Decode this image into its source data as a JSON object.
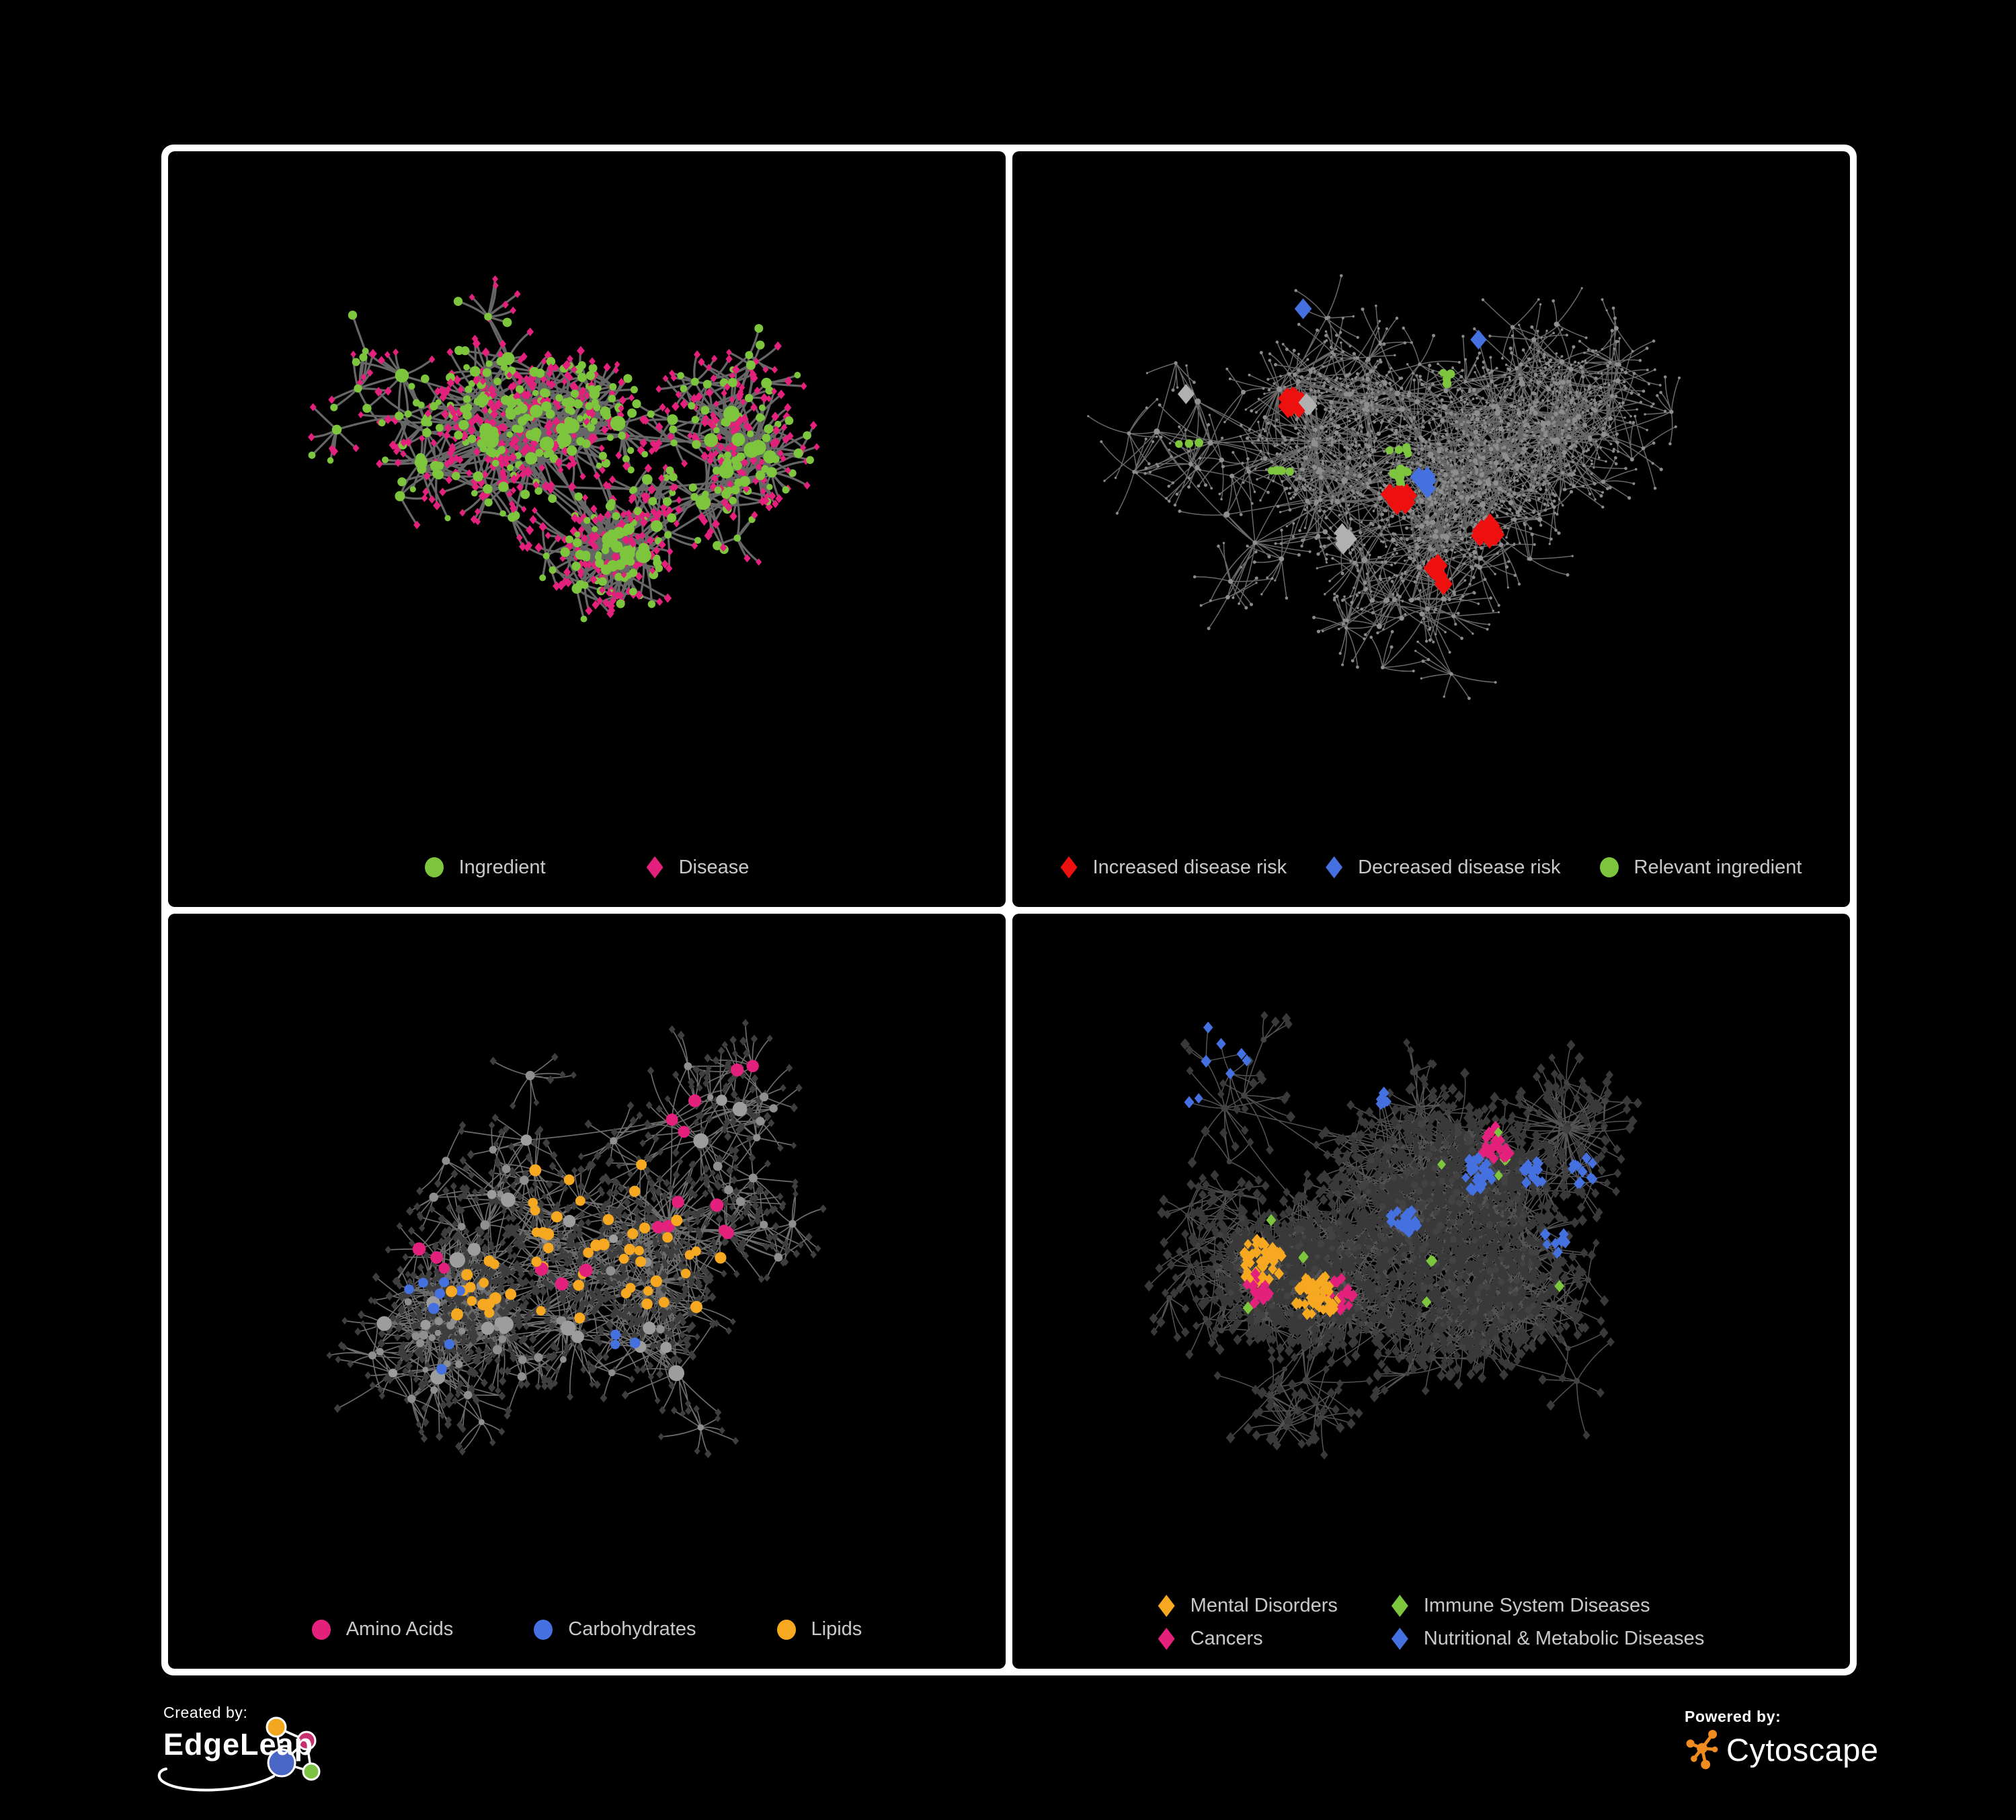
{
  "page": {
    "background": "#000000",
    "legend_text_color": "#C9C9C9"
  },
  "colors": {
    "green": "#7CC53D",
    "pink": "#E3217C",
    "red": "#EE0F0F",
    "blue": "#4470E0",
    "gold": "#F5A820",
    "silver": "#B0B0B0"
  },
  "footer": {
    "created_by": {
      "label": "Created by:",
      "brand": "EdgeLeap"
    },
    "powered_by": {
      "label": "Powered by:",
      "brand": "Cytoscape"
    }
  },
  "panels": [
    {
      "id": "ingredient-disease",
      "legend": {
        "items": [
          {
            "label": "Ingredient",
            "shape": "circle",
            "color": "#7CC53D"
          },
          {
            "label": "Disease",
            "shape": "diamond",
            "color": "#E3217C"
          }
        ]
      },
      "network": {
        "seed": 11,
        "clusters": 15,
        "spread": [
          0.33,
          0.32
        ],
        "netH": 1005,
        "hubSpread": 120,
        "hubs": [
          2,
          4
        ],
        "hubR": [
          6,
          12
        ],
        "leaves": [
          4,
          12
        ],
        "leafDist": [
          35,
          95
        ],
        "subProb": 0.3,
        "subLeaves": [
          3,
          8
        ],
        "subDist": [
          28,
          60
        ],
        "midR": [
          5,
          8
        ],
        "bigBursts": 2,
        "bigLeaves": [
          18,
          30
        ],
        "extraLinks": 10,
        "edge": {
          "color": "#6C6C6C",
          "width": 3.2,
          "opacity": 0.95
        },
        "hubStyle": {
          "shape": "circle",
          "color": "#7CC53D"
        },
        "midStyle": {
          "shape": "circle",
          "color": "#7CC53D"
        },
        "leafVariants": [
          {
            "w": 0.76,
            "shape": "diamond",
            "color": "#E3217C",
            "r": [
              4.5,
              6.5
            ]
          },
          {
            "w": 0.24,
            "shape": "circle",
            "color": "#7CC53D",
            "r": [
              4.5,
              7
            ]
          }
        ],
        "highlights": []
      }
    },
    {
      "id": "disease-risk",
      "legend": {
        "items": [
          {
            "label": "Increased disease risk",
            "shape": "diamond",
            "color": "#EE0F0F"
          },
          {
            "label": "Decreased disease risk",
            "shape": "diamond",
            "color": "#4470E0"
          },
          {
            "label": "Relevant ingredient",
            "shape": "circle",
            "color": "#7CC53D"
          }
        ]
      },
      "network": {
        "seed": 22,
        "clusters": 18,
        "spread": [
          0.34,
          0.32
        ],
        "netH": 1005,
        "hubSpread": 140,
        "hubs": [
          2,
          4
        ],
        "hubR": [
          3,
          5
        ],
        "leaves": [
          4,
          13
        ],
        "leafDist": [
          40,
          110
        ],
        "subProb": 0.42,
        "subLeaves": [
          3,
          9
        ],
        "subDist": [
          30,
          70
        ],
        "midR": [
          2.5,
          4
        ],
        "bigBursts": 4,
        "bigLeaves": [
          20,
          36
        ],
        "extraLinks": 14,
        "edge": {
          "color": "#828282",
          "width": 1.5,
          "opacity": 0.8
        },
        "hubStyle": {
          "shape": "circle",
          "color": "#8F8F8F"
        },
        "midStyle": {
          "shape": "circle",
          "color": "#8F8F8F"
        },
        "leafVariants": [
          {
            "w": 1,
            "shape": "circle",
            "color": "#8A8A8A",
            "r": [
              1.6,
              2.6
            ]
          }
        ],
        "highlights": [
          {
            "shape": "diamond",
            "color": "#EE0F0F",
            "s": [
              13,
              16
            ],
            "count": 27,
            "targets": [
              "hub",
              "mid",
              "leaf"
            ],
            "region": [
              0.18,
              0.72,
              0.15,
              0.75
            ],
            "foci": 4
          },
          {
            "shape": "diamond",
            "color": "#B0B0B0",
            "s": [
              12,
              14
            ],
            "count": 9,
            "targets": [
              "hub",
              "mid",
              "leaf"
            ],
            "region": [
              0.2,
              0.62,
              0.2,
              0.7
            ],
            "foci": 3
          },
          {
            "shape": "diamond",
            "color": "#4470E0",
            "s": [
              12,
              14
            ],
            "count": 8,
            "targets": [
              "hub",
              "mid",
              "leaf"
            ],
            "region": [
              0.15,
              0.98,
              0.08,
              0.55
            ],
            "foci": 3
          },
          {
            "shape": "circle",
            "color": "#7CC53D",
            "s": [
              5.5,
              7
            ],
            "count": 26,
            "targets": [
              "hub",
              "mid",
              "leaf"
            ],
            "region": [
              0.12,
              0.75,
              0.12,
              0.8
            ],
            "foci": 5
          }
        ]
      }
    },
    {
      "id": "nutrient-classes",
      "legend": {
        "items": [
          {
            "label": "Amino Acids",
            "shape": "circle",
            "color": "#E3217C"
          },
          {
            "label": "Carbohydrates",
            "shape": "circle",
            "color": "#4470E0"
          },
          {
            "label": "Lipids",
            "shape": "circle",
            "color": "#F5A820"
          }
        ]
      },
      "network": {
        "seed": 33,
        "clusters": 16,
        "spread": [
          0.32,
          0.31
        ],
        "netH": 1005,
        "hubSpread": 130,
        "hubs": [
          2,
          4
        ],
        "hubR": [
          6,
          12
        ],
        "leaves": [
          4,
          13
        ],
        "leafDist": [
          35,
          100
        ],
        "subProb": 0.34,
        "subLeaves": [
          4,
          10
        ],
        "subDist": [
          28,
          65
        ],
        "midR": [
          4.5,
          7
        ],
        "bigBursts": 3,
        "bigLeaves": [
          26,
          48
        ],
        "extraLinks": 12,
        "edge": {
          "color": "#9A9A9A",
          "width": 1.7,
          "opacity": 0.7
        },
        "hubStyle": {
          "shape": "circle",
          "color": "#9D9D9D"
        },
        "midStyle": {
          "shape": "circle",
          "color": "#8F8F8F"
        },
        "leafVariants": [
          {
            "w": 1,
            "shape": "diamond",
            "color": "#3E3E3E",
            "r": [
              4.5,
              6
            ]
          }
        ],
        "highlights": [
          {
            "shape": "circle",
            "color": "#F5A820",
            "s": [
              7,
              9
            ],
            "count": 55,
            "targets": [
              "hub",
              "mid"
            ],
            "region": [
              0.15,
              0.75,
              0.05,
              0.6
            ],
            "foci": 3
          },
          {
            "shape": "circle",
            "color": "#E3217C",
            "s": [
              8,
              10
            ],
            "count": 17,
            "targets": [
              "hub",
              "mid"
            ],
            "region": [
              0.02,
              0.98,
              0.05,
              0.95
            ],
            "foci": 6
          },
          {
            "shape": "circle",
            "color": "#4470E0",
            "s": [
              7,
              8.5
            ],
            "count": 11,
            "targets": [
              "hub",
              "mid"
            ],
            "region": [
              0.1,
              0.8,
              0.05,
              0.75
            ],
            "foci": 4
          }
        ]
      }
    },
    {
      "id": "disease-classes",
      "legend": {
        "columns": 2,
        "items": [
          {
            "label": "Mental Disorders",
            "shape": "diamond",
            "color": "#F5A820"
          },
          {
            "label": "Immune System Diseases",
            "shape": "diamond",
            "color": "#7CC53D"
          },
          {
            "label": "Cancers",
            "shape": "diamond",
            "color": "#E3217C"
          },
          {
            "label": "Nutritional & Metabolic Diseases",
            "shape": "diamond",
            "color": "#4470E0"
          }
        ]
      },
      "network": {
        "seed": 44,
        "clusters": 22,
        "spread": [
          0.34,
          0.31
        ],
        "netH": 970,
        "hubSpread": 130,
        "hubs": [
          2,
          4
        ],
        "hubR": [
          4,
          6
        ],
        "leaves": [
          5,
          14
        ],
        "leafDist": [
          35,
          95
        ],
        "subProb": 0.36,
        "subLeaves": [
          4,
          10
        ],
        "subDist": [
          26,
          60
        ],
        "midR": [
          3.5,
          5.5
        ],
        "bigBursts": 5,
        "bigLeaves": [
          24,
          44
        ],
        "extraLinks": 16,
        "edge": {
          "color": "#808080",
          "width": 1.5,
          "opacity": 0.65
        },
        "hubStyle": {
          "shape": "circle",
          "color": "#424242"
        },
        "midStyle": {
          "shape": "circle",
          "color": "#424242"
        },
        "leafVariants": [
          {
            "w": 1,
            "shape": "diamond",
            "color": "#393939",
            "r": [
              5.5,
              7.5
            ]
          }
        ],
        "highlights": [
          {
            "shape": "diamond",
            "color": "#F5A820",
            "s": [
              6.5,
              8.5
            ],
            "count": 95,
            "targets": [
              "leaf",
              "mid"
            ],
            "region": [
              0.02,
              0.4,
              0.2,
              0.75
            ],
            "foci": 2
          },
          {
            "shape": "diamond",
            "color": "#E3217C",
            "s": [
              6.5,
              8.5
            ],
            "count": 58,
            "targets": [
              "leaf",
              "mid"
            ],
            "region": [
              0.28,
              0.62,
              0.15,
              0.8
            ],
            "foci": 3
          },
          {
            "shape": "diamond",
            "color": "#4470E0",
            "s": [
              6.5,
              8.5
            ],
            "count": 90,
            "targets": [
              "leaf",
              "mid"
            ],
            "region": [
              0.45,
              0.99,
              0.02,
              0.95
            ],
            "foci": 6
          },
          {
            "shape": "diamond",
            "color": "#4470E0",
            "s": [
              6.5,
              8.5
            ],
            "count": 14,
            "targets": [
              "leaf",
              "mid"
            ],
            "region": [
              0.02,
              0.45,
              0.02,
              0.3
            ],
            "foci": 3
          },
          {
            "shape": "diamond",
            "color": "#7CC53D",
            "s": [
              6.5,
              8.5
            ],
            "count": 13,
            "targets": [
              "leaf",
              "mid"
            ],
            "region": [
              0.08,
              0.9,
              0.05,
              0.9
            ],
            "foci": 12
          }
        ]
      }
    }
  ]
}
